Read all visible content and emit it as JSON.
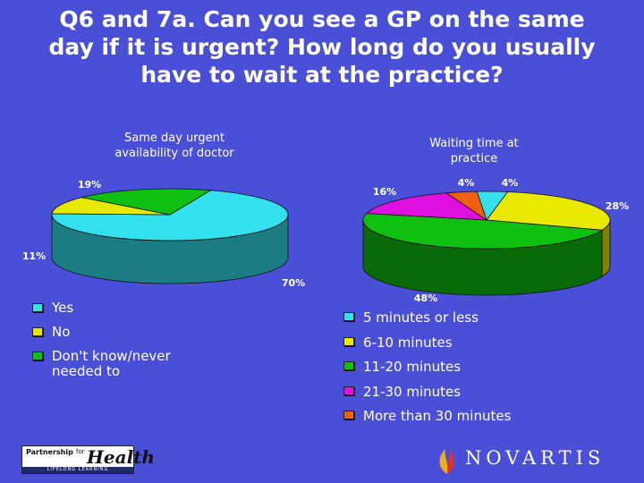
{
  "title": "Q6 and 7a. Can you see a GP on the same day if it is urgent? How long do you usually have to wait at the practice?",
  "colors": {
    "background": "#4a4fd8",
    "cyan": "#33e1ee",
    "yellow": "#e8e800",
    "green": "#10c010",
    "magenta": "#e010e0",
    "orange": "#ee6010"
  },
  "chart_data": [
    {
      "type": "pie",
      "title": "Same day urgent availability of doctor",
      "categories": [
        "Yes",
        "No",
        "Don't know/never needed to"
      ],
      "values": [
        70,
        11,
        19
      ],
      "labels": [
        "70%",
        "11%",
        "19%"
      ],
      "legend": [
        "Yes",
        "No",
        "Don't know/never needed to"
      ],
      "legend_position": "bottom-left",
      "style": "3d"
    },
    {
      "type": "pie",
      "title": "Waiting time at practice",
      "categories": [
        "5 minutes or less",
        "6-10 minutes",
        "11-20 minutes",
        "21-30 minutes",
        "More than 30 minutes"
      ],
      "values": [
        4,
        28,
        48,
        16,
        4
      ],
      "labels": [
        "4%",
        "28%",
        "48%",
        "16%",
        "4%"
      ],
      "legend": [
        "5 minutes or less",
        "6-10 minutes",
        "11-20 minutes",
        "21-30 minutes",
        "More than 30 minutes"
      ],
      "legend_position": "bottom-right",
      "style": "3d"
    }
  ],
  "logos": {
    "partnership": {
      "line1": "Partnership",
      "for_word": "for",
      "health_word": "Health",
      "tagline": "LIFELONG LEARNING"
    },
    "novartis": {
      "wordmark": "NOVARTIS"
    }
  }
}
